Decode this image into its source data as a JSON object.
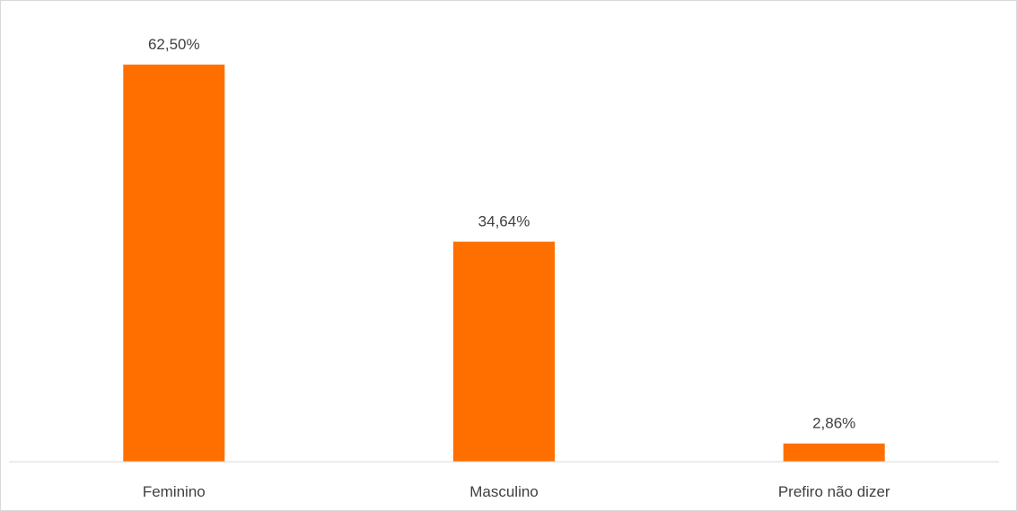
{
  "chart_data": {
    "type": "bar",
    "categories": [
      "Feminino",
      "Masculino",
      "Prefiro não dizer"
    ],
    "values": [
      62.5,
      34.64,
      2.86
    ],
    "data_labels": [
      "62,50%",
      "34,64%",
      "2,86%"
    ],
    "title": "",
    "xlabel": "",
    "ylabel": "",
    "ylim": [
      0,
      70
    ],
    "grid": false,
    "legend": "none",
    "bar_color": "#FF6F00",
    "axis_color": "#d9d9d9",
    "text_color": "#404040"
  }
}
